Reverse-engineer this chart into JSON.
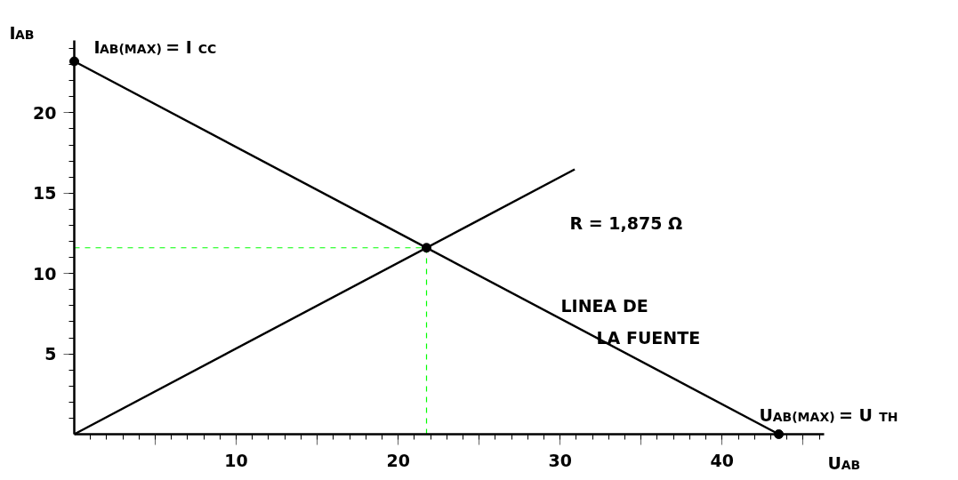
{
  "chart_data": {
    "type": "line",
    "xlabel": "U$_{AB}$",
    "ylabel": "I$_{AB}$",
    "xlim": [
      0,
      46.3
    ],
    "ylim": [
      0,
      24.5
    ],
    "xticks": [
      {
        "value": 5,
        "label": null
      },
      10,
      {
        "value": 15,
        "label": null
      },
      20,
      {
        "value": 25,
        "label": null
      },
      30,
      {
        "value": 35,
        "label": null
      },
      40,
      {
        "value": 45,
        "label": null
      }
    ],
    "yticks": [
      5,
      10,
      15,
      20
    ],
    "grid": false,
    "line_style": "solid",
    "marker": "none",
    "series": [
      {
        "color": "#000000",
        "x": [
          0,
          43.5
        ],
        "values": [
          23.2,
          0
        ]
      },
      {
        "color": "#000000",
        "x": [
          0,
          30.9
        ],
        "values": [
          0,
          16.48
        ]
      },
      {
        "color": "#00ff00",
        "line_style": "dashed",
        "x": [
          0,
          21.75
        ],
        "values": [
          11.6,
          11.6
        ]
      },
      {
        "color": "#00ff00",
        "line_style": "dashed",
        "x": [
          21.75,
          21.75
        ],
        "values": [
          0,
          11.6
        ]
      },
      {
        "type": "scatter",
        "color": "#000000",
        "marker": "circle",
        "x": [
          0,
          21.75,
          43.5
        ],
        "values": [
          23.2,
          11.6,
          0
        ]
      }
    ],
    "annotations": [
      {
        "text": "I$_{AB(MAX)}$ = I$_{CC}$",
        "x": 0,
        "y": 23.2
      },
      "R = 1,875 Ω",
      "LINEA DE\nLA FUENTE",
      {
        "text": "U$_{AB(MAX)}$ = U$_{TH}$",
        "x": 43.5,
        "y": 0
      }
    ]
  }
}
